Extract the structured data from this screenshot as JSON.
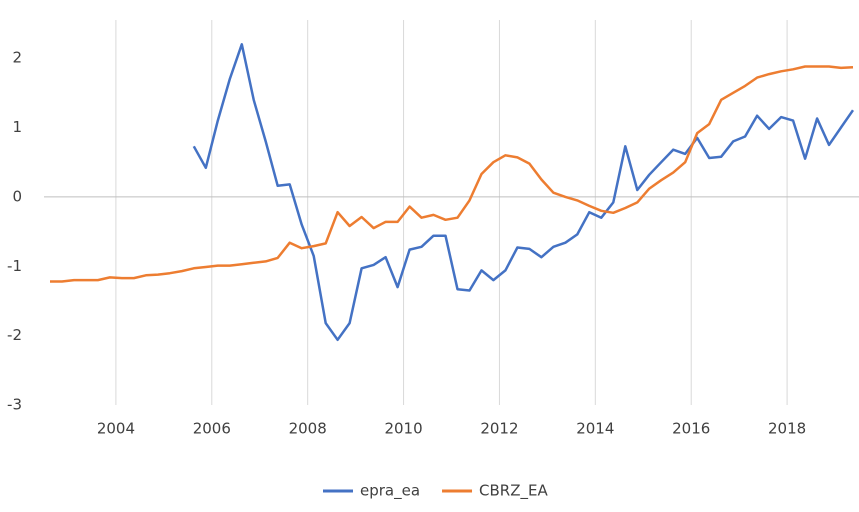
{
  "chart_data": {
    "type": "line",
    "x": [
      2002.625,
      2002.875,
      2003.125,
      2003.375,
      2003.625,
      2003.875,
      2004.125,
      2004.375,
      2004.625,
      2004.875,
      2005.125,
      2005.375,
      2005.625,
      2005.875,
      2006.125,
      2006.375,
      2006.625,
      2006.875,
      2007.125,
      2007.375,
      2007.625,
      2007.875,
      2008.125,
      2008.375,
      2008.625,
      2008.875,
      2009.125,
      2009.375,
      2009.625,
      2009.875,
      2010.125,
      2010.375,
      2010.625,
      2010.875,
      2011.125,
      2011.375,
      2011.625,
      2011.875,
      2012.125,
      2012.375,
      2012.625,
      2012.875,
      2013.125,
      2013.375,
      2013.625,
      2013.875,
      2014.125,
      2014.375,
      2014.625,
      2014.875,
      2015.125,
      2015.375,
      2015.625,
      2015.875,
      2016.125,
      2016.375,
      2016.625,
      2016.875,
      2017.125,
      2017.375,
      2017.625,
      2017.875,
      2018.125,
      2018.375,
      2018.625,
      2018.875,
      2019.125,
      2019.375
    ],
    "series": [
      {
        "name": "epra_ea",
        "color": "#4472c4",
        "values": [
          null,
          null,
          null,
          null,
          null,
          null,
          null,
          null,
          null,
          null,
          null,
          null,
          0.73,
          0.42,
          1.1,
          1.7,
          2.2,
          1.4,
          0.8,
          0.16,
          0.18,
          -0.4,
          -0.85,
          -1.82,
          -2.06,
          -1.82,
          -1.03,
          -0.98,
          -0.87,
          -1.3,
          -0.76,
          -0.72,
          -0.56,
          -0.56,
          -1.33,
          -1.35,
          -1.06,
          -1.2,
          -1.06,
          -0.73,
          -0.75,
          -0.87,
          -0.72,
          -0.66,
          -0.54,
          -0.22,
          -0.3,
          -0.08,
          0.73,
          0.1,
          0.32,
          0.5,
          0.68,
          0.62,
          0.85,
          0.56,
          0.58,
          0.8,
          0.87,
          1.17,
          0.98,
          1.15,
          1.1,
          0.55,
          1.13,
          0.75,
          1.0,
          1.25
        ]
      },
      {
        "name": "CBRZ_EA",
        "color": "#ed7d31",
        "values": [
          -1.22,
          -1.22,
          -1.2,
          -1.2,
          -1.2,
          -1.16,
          -1.17,
          -1.17,
          -1.13,
          -1.12,
          -1.1,
          -1.07,
          -1.03,
          -1.01,
          -0.99,
          -0.99,
          -0.97,
          -0.95,
          -0.93,
          -0.88,
          -0.66,
          -0.74,
          -0.71,
          -0.67,
          -0.22,
          -0.42,
          -0.29,
          -0.45,
          -0.36,
          -0.36,
          -0.14,
          -0.3,
          -0.26,
          -0.33,
          -0.3,
          -0.05,
          0.33,
          0.5,
          0.6,
          0.57,
          0.48,
          0.25,
          0.06,
          0,
          -0.05,
          -0.13,
          -0.2,
          -0.23,
          -0.16,
          -0.08,
          0.12,
          0.24,
          0.35,
          0.5,
          0.92,
          1.05,
          1.4,
          1.5,
          1.6,
          1.72,
          1.77,
          1.81,
          1.84,
          1.88,
          1.88,
          1.88,
          1.86,
          1.87
        ]
      }
    ],
    "xlim": [
      2002.5,
      2019.5
    ],
    "xticks": [
      2004,
      2006,
      2008,
      2010,
      2012,
      2014,
      2016,
      2018
    ],
    "ylim": [
      -3,
      2.55
    ],
    "yticks": [
      -3,
      -2,
      -1,
      0,
      1,
      2
    ],
    "grid": true,
    "legend": "bottom"
  }
}
